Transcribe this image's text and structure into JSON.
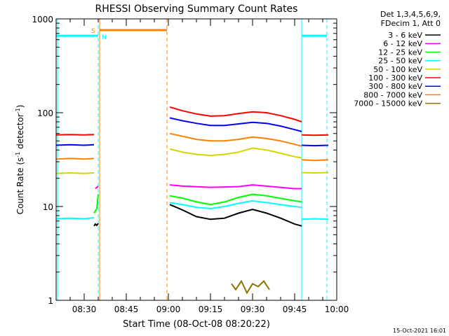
{
  "chart_data": {
    "type": "line",
    "title": "RHESSI Observing Summary Count Rates",
    "xlabel": "Start Time (08-Oct-08 08:20:22)",
    "ylabel_main": "Count Rate (s",
    "ylabel_sup1": "-1",
    "ylabel_mid": " detector",
    "ylabel_sup2": "-1",
    "ylabel_end": ")",
    "ylog": true,
    "ylim": [
      1,
      1000
    ],
    "xlim_minutes": [
      0,
      100
    ],
    "x_ticks": [
      {
        "t": 10,
        "label": "08:30"
      },
      {
        "t": 25,
        "label": "08:45"
      },
      {
        "t": 40,
        "label": "09:00"
      },
      {
        "t": 55,
        "label": "09:15"
      },
      {
        "t": 70,
        "label": "09:30"
      },
      {
        "t": 85,
        "label": "09:45"
      },
      {
        "t": 100,
        "label": "10:00"
      }
    ],
    "y_ticks": [
      {
        "v": 1,
        "label": "1"
      },
      {
        "v": 10,
        "label": "10"
      },
      {
        "v": 100,
        "label": "100"
      },
      {
        "v": 1000,
        "label": "1000"
      }
    ],
    "legend_header": [
      "Det 1,3,4,5,6,9,",
      "FDecim 1, Att 0"
    ],
    "series": [
      {
        "name": "3 - 6 keV",
        "color": "#000000",
        "segments": [
          {
            "x": [
              13.5,
              14.0,
              14.5,
              15.0
            ],
            "y": [
              6.2,
              6.5,
              6.3,
              6.6
            ]
          },
          {
            "x": [
              40.5,
              45,
              50,
              55,
              60,
              65,
              70,
              75,
              80,
              85,
              87.5
            ],
            "y": [
              10.5,
              9.2,
              7.8,
              7.3,
              7.5,
              8.5,
              9.3,
              8.5,
              7.5,
              6.5,
              6.2
            ]
          }
        ]
      },
      {
        "name": "6 - 12 keV",
        "color": "#ff00ff",
        "segments": [
          {
            "x": [
              14.0,
              15.0
            ],
            "y": [
              15.5,
              16.5
            ]
          },
          {
            "x": [
              40.5,
              45,
              55,
              65,
              70,
              75,
              85,
              87.5
            ],
            "y": [
              17,
              16.5,
              16,
              16.3,
              17.0,
              16.5,
              15.5,
              15.5
            ]
          }
        ]
      },
      {
        "name": "12 - 25 keV",
        "color": "#00ff00",
        "segments": [
          {
            "x": [
              13.5,
              14.5,
              15.0
            ],
            "y": [
              8.5,
              9.5,
              13.5
            ]
          },
          {
            "x": [
              40.5,
              45,
              50,
              55,
              60,
              65,
              70,
              75,
              80,
              85,
              87.5
            ],
            "y": [
              13,
              12.3,
              11.2,
              10.5,
              11.2,
              12.5,
              13.5,
              13.0,
              12.2,
              11.5,
              11.2
            ]
          }
        ]
      },
      {
        "name": "25 - 50 keV",
        "color": "#00ffff",
        "segments": [
          {
            "x": [
              0,
              5,
              10,
              13.5
            ],
            "y": [
              7.4,
              7.5,
              7.4,
              7.6
            ]
          },
          {
            "x": [
              40.5,
              45,
              50,
              55,
              60,
              65,
              70,
              75,
              80,
              85,
              87.5
            ],
            "y": [
              11.0,
              10.5,
              9.8,
              9.5,
              10.0,
              10.8,
              11.5,
              11.0,
              10.5,
              10.0,
              9.8
            ]
          },
          {
            "x": [
              87.5,
              92,
              97
            ],
            "y": [
              7.3,
              7.4,
              7.3
            ]
          }
        ]
      },
      {
        "name": "50 - 100 keV",
        "color": "#d4d400",
        "segments": [
          {
            "x": [
              0,
              5,
              10,
              13.5
            ],
            "y": [
              22.5,
              22.8,
              22.5,
              22.8
            ]
          },
          {
            "x": [
              40.5,
              45,
              50,
              55,
              60,
              65,
              70,
              75,
              80,
              85,
              87.5
            ],
            "y": [
              41,
              38,
              36,
              35,
              36,
              38,
              42,
              40,
              37,
              34,
              33
            ]
          },
          {
            "x": [
              87.5,
              92,
              97
            ],
            "y": [
              23,
              22.8,
              23
            ]
          }
        ]
      },
      {
        "name": "100 - 300 keV",
        "color": "#ff0000",
        "segments": [
          {
            "x": [
              0,
              5,
              10,
              13.5
            ],
            "y": [
              58,
              58.5,
              58,
              58.5
            ]
          },
          {
            "x": [
              40.5,
              45,
              50,
              55,
              60,
              65,
              70,
              75,
              80,
              85,
              87.5
            ],
            "y": [
              115,
              105,
              97,
              92,
              93,
              98,
              102,
              100,
              93,
              85,
              80
            ]
          },
          {
            "x": [
              87.5,
              92,
              97
            ],
            "y": [
              58,
              57.5,
              58
            ]
          }
        ]
      },
      {
        "name": "300 - 800 keV",
        "color": "#0000ff",
        "segments": [
          {
            "x": [
              0,
              5,
              10,
              13.5
            ],
            "y": [
              45,
              45.5,
              45,
              45.5
            ]
          },
          {
            "x": [
              40.5,
              45,
              50,
              55,
              60,
              65,
              70,
              75,
              80,
              85,
              87.5
            ],
            "y": [
              88,
              82,
              77,
              73,
              73,
              76,
              79,
              77,
              72,
              66,
              63
            ]
          },
          {
            "x": [
              87.5,
              92,
              97
            ],
            "y": [
              45,
              44.5,
              45
            ]
          }
        ]
      },
      {
        "name": "800 - 7000 keV",
        "color": "#ff8000",
        "segments": [
          {
            "x": [
              0,
              5,
              10,
              13.5
            ],
            "y": [
              32,
              32.5,
              32,
              32.5
            ]
          },
          {
            "x": [
              40.5,
              45,
              50,
              55,
              60,
              65,
              70,
              75,
              80,
              85,
              87.5
            ],
            "y": [
              60,
              56,
              52,
              50,
              50,
              52,
              55,
              53,
              50,
              46,
              44
            ]
          },
          {
            "x": [
              87.5,
              92,
              97
            ],
            "y": [
              31.5,
              31,
              31.5
            ]
          }
        ]
      },
      {
        "name": "7000 - 15000 keV",
        "color": "#8b7500",
        "segments": [
          {
            "x": [
              62.5,
              64,
              66,
              68,
              70,
              72,
              74,
              76
            ],
            "y": [
              1.5,
              1.3,
              1.6,
              1.2,
              1.5,
              1.4,
              1.6,
              1.3
            ]
          }
        ]
      }
    ],
    "annotations": [
      {
        "label": "S",
        "color": "#ff8000"
      },
      {
        "label": "N",
        "color": "#00ffff"
      }
    ]
  },
  "footer_stamp": "15-Oct-2021 16:01"
}
